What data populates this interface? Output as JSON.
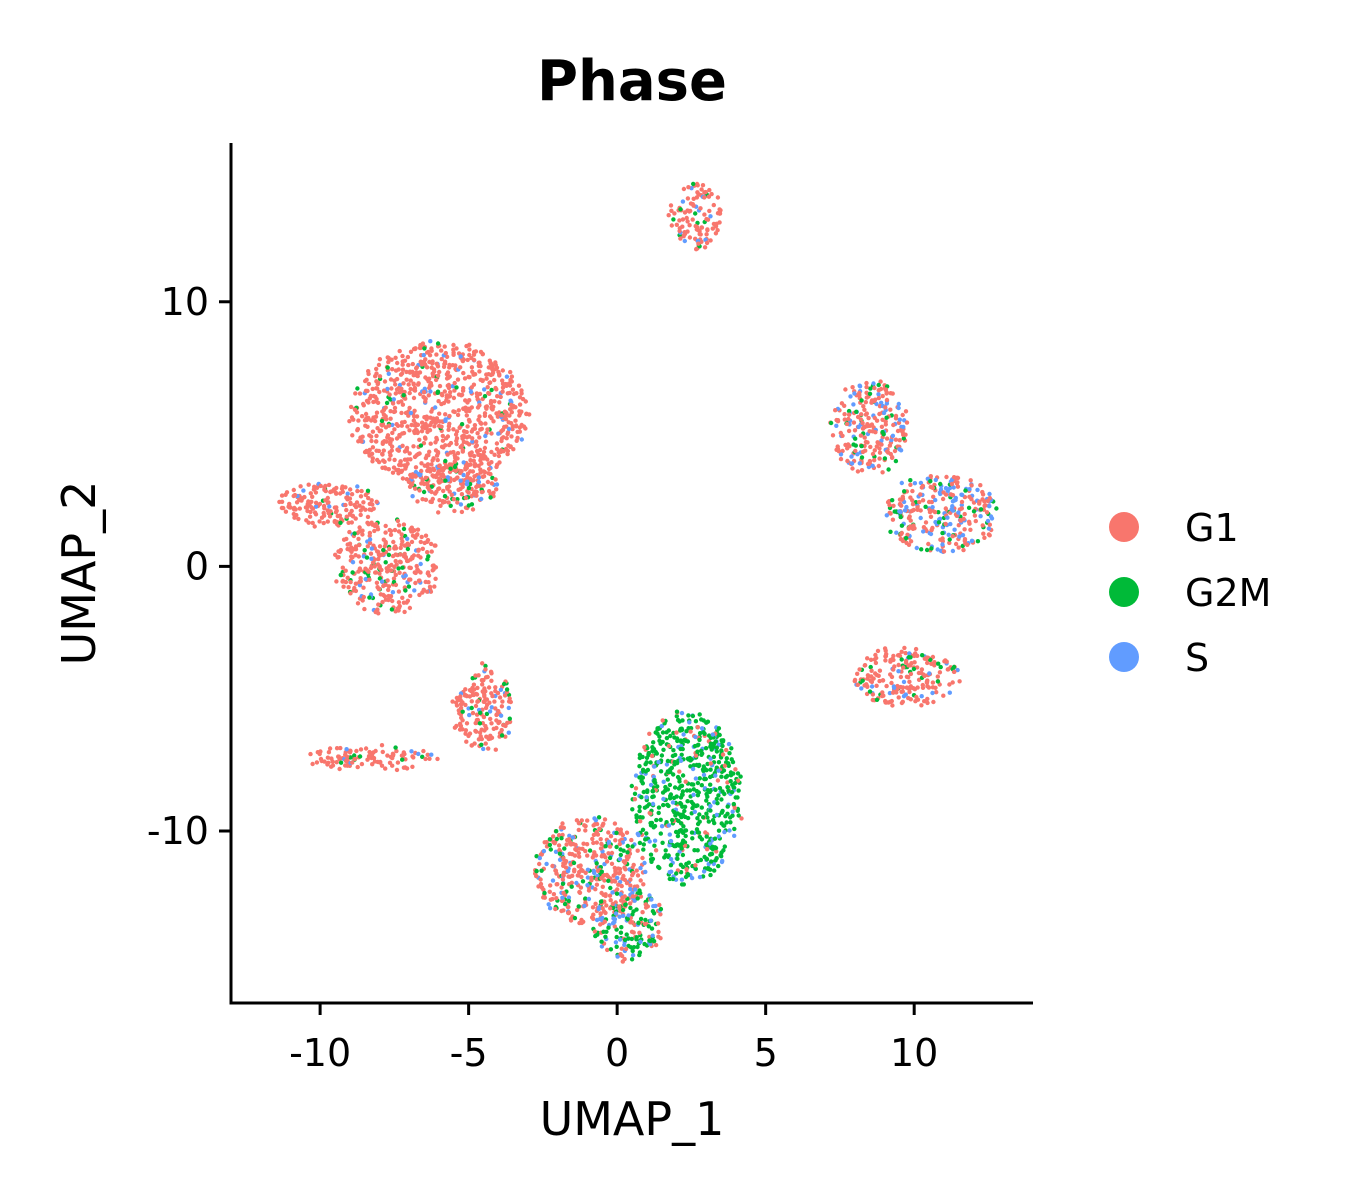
{
  "chart_data": {
    "type": "scatter",
    "title": "Phase",
    "xlabel": "UMAP_1",
    "ylabel": "UMAP_2",
    "xlim": [
      -13,
      14
    ],
    "ylim": [
      -16.5,
      16
    ],
    "xticks": [
      -10,
      -5,
      0,
      5,
      10
    ],
    "yticks": [
      -10,
      0,
      10
    ],
    "xtick_labels": [
      "-10",
      "-5",
      "0",
      "5",
      "10"
    ],
    "ytick_labels": [
      "-10",
      "0",
      "10"
    ],
    "grid": false,
    "legend_position": "right",
    "legend": [
      {
        "name": "G1",
        "color": "#F8766D"
      },
      {
        "name": "G2M",
        "color": "#00BA38"
      },
      {
        "name": "S",
        "color": "#619CFF"
      }
    ],
    "clusters": [
      {
        "label": "top-left large",
        "x": [
          -9,
          -3
        ],
        "y": [
          3,
          8.5
        ],
        "mix": {
          "G1": 0.92,
          "G2M": 0.03,
          "S": 0.05
        }
      },
      {
        "label": "left arm",
        "x": [
          -11.5,
          -8
        ],
        "y": [
          1.5,
          3.2
        ],
        "mix": {
          "G1": 0.88,
          "G2M": 0.06,
          "S": 0.06
        }
      },
      {
        "label": "left lower lobe",
        "x": [
          -9.5,
          -6
        ],
        "y": [
          -1.8,
          1.8
        ],
        "mix": {
          "G1": 0.8,
          "G2M": 0.12,
          "S": 0.08
        }
      },
      {
        "label": "mid stream",
        "x": [
          -7,
          -4
        ],
        "y": [
          2,
          4
        ],
        "mix": {
          "G1": 0.75,
          "G2M": 0.15,
          "S": 0.1
        }
      },
      {
        "label": "top small",
        "x": [
          1.8,
          3.5
        ],
        "y": [
          12,
          14.5
        ],
        "mix": {
          "G1": 0.85,
          "G2M": 0.07,
          "S": 0.08
        }
      },
      {
        "label": "right upper",
        "x": [
          7.2,
          9.8
        ],
        "y": [
          3.5,
          7
        ],
        "mix": {
          "G1": 0.65,
          "G2M": 0.12,
          "S": 0.23
        }
      },
      {
        "label": "right mid",
        "x": [
          9,
          12.8
        ],
        "y": [
          0.5,
          3.5
        ],
        "mix": {
          "G1": 0.55,
          "G2M": 0.15,
          "S": 0.3
        }
      },
      {
        "label": "right lower",
        "x": [
          8,
          11.5
        ],
        "y": [
          -5.3,
          -3
        ],
        "mix": {
          "G1": 0.8,
          "G2M": 0.12,
          "S": 0.08
        }
      },
      {
        "label": "lower left strip",
        "x": [
          -10.5,
          -6
        ],
        "y": [
          -7.7,
          -6.8
        ],
        "mix": {
          "G1": 0.85,
          "G2M": 0.1,
          "S": 0.05
        }
      },
      {
        "label": "lower left arm",
        "x": [
          -5.5,
          -3.5
        ],
        "y": [
          -7,
          -3.7
        ],
        "mix": {
          "G1": 0.85,
          "G2M": 0.08,
          "S": 0.07
        }
      },
      {
        "label": "bottom G2M large",
        "x": [
          0.5,
          4.2
        ],
        "y": [
          -12,
          -5.5
        ],
        "mix": {
          "G1": 0.1,
          "G2M": 0.75,
          "S": 0.15
        }
      },
      {
        "label": "bottom left",
        "x": [
          -2.8,
          1
        ],
        "y": [
          -13.5,
          -9.5
        ],
        "mix": {
          "G1": 0.7,
          "G2M": 0.15,
          "S": 0.15
        }
      },
      {
        "label": "bottom small",
        "x": [
          -0.8,
          1.6
        ],
        "y": [
          -14.9,
          -12.2
        ],
        "mix": {
          "G1": 0.3,
          "G2M": 0.45,
          "S": 0.25
        }
      }
    ]
  }
}
